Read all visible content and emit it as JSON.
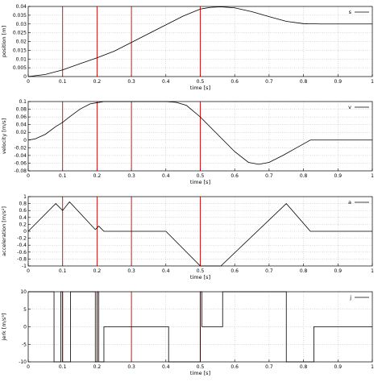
{
  "chart_data": [
    {
      "type": "line",
      "xlabel": "time [s]",
      "ylabel": "position [m]",
      "xlim": [
        0,
        1
      ],
      "ylim": [
        0,
        0.04
      ],
      "xticks": [
        "0",
        "0.1",
        "0.2",
        "0.3",
        "0.4",
        "0.5",
        "0.6",
        "0.7",
        "0.8",
        "0.9",
        "1"
      ],
      "yticks": [
        "0",
        "0.005",
        "0.01",
        "0.015",
        "0.02",
        "0.025",
        "0.03",
        "0.035",
        "0.04"
      ],
      "vlines": [
        0.1,
        0.2,
        0.3,
        0.5
      ],
      "legend_position": "top-right",
      "series": [
        {
          "name": "s",
          "x": [
            0,
            0.05,
            0.1,
            0.15,
            0.2,
            0.25,
            0.3,
            0.35,
            0.4,
            0.45,
            0.5,
            0.53,
            0.56,
            0.6,
            0.65,
            0.7,
            0.75,
            0.8,
            0.85,
            0.9,
            0.95,
            1
          ],
          "y": [
            0,
            0.0012,
            0.0038,
            0.0073,
            0.0107,
            0.0145,
            0.0195,
            0.0245,
            0.0295,
            0.0345,
            0.0385,
            0.0395,
            0.0398,
            0.0392,
            0.037,
            0.0342,
            0.0315,
            0.0302,
            0.03,
            0.03,
            0.03,
            0.03
          ]
        }
      ]
    },
    {
      "type": "line",
      "xlabel": "time [s]",
      "ylabel": "velocity [m/s]",
      "xlim": [
        0,
        1
      ],
      "ylim": [
        -0.08,
        0.1
      ],
      "xticks": [
        "0",
        "0.1",
        "0.2",
        "0.3",
        "0.4",
        "0.5",
        "0.6",
        "0.7",
        "0.8",
        "0.9",
        "1"
      ],
      "yticks": [
        "-0.08",
        "-0.06",
        "-0.04",
        "-0.02",
        "0",
        "0.02",
        "0.04",
        "0.06",
        "0.08",
        "0.1"
      ],
      "vlines": [
        0.1,
        0.2,
        0.3,
        0.5
      ],
      "legend_position": "top-right",
      "series": [
        {
          "name": "v",
          "x": [
            0,
            0.02,
            0.05,
            0.08,
            0.1,
            0.12,
            0.15,
            0.18,
            0.2,
            0.22,
            0.25,
            0.3,
            0.35,
            0.4,
            0.43,
            0.46,
            0.5,
            0.55,
            0.6,
            0.64,
            0.67,
            0.7,
            0.74,
            0.78,
            0.82,
            0.85,
            0.9,
            0.95,
            1
          ],
          "y": [
            0,
            0.003,
            0.015,
            0.035,
            0.046,
            0.06,
            0.08,
            0.094,
            0.097,
            0.1,
            0.1,
            0.1,
            0.1,
            0.1,
            0.098,
            0.09,
            0.06,
            0.015,
            -0.03,
            -0.058,
            -0.063,
            -0.058,
            -0.04,
            -0.02,
            0,
            0,
            0,
            0,
            0
          ]
        }
      ]
    },
    {
      "type": "line",
      "xlabel": "time [s]",
      "ylabel": "acceleration [m/s²]",
      "xlim": [
        0,
        1
      ],
      "ylim": [
        -1,
        1
      ],
      "xticks": [
        "0",
        "0.1",
        "0.2",
        "0.3",
        "0.4",
        "0.5",
        "0.6",
        "0.7",
        "0.8",
        "0.9",
        "1"
      ],
      "yticks": [
        "-1",
        "-0.8",
        "-0.6",
        "-0.4",
        "-0.2",
        "0",
        "0.2",
        "0.4",
        "0.6",
        "0.8",
        "1"
      ],
      "vlines": [
        0.1,
        0.2,
        0.3,
        0.5
      ],
      "legend_position": "top-right",
      "series": [
        {
          "name": "a",
          "x": [
            0,
            0.08,
            0.1,
            0.12,
            0.195,
            0.205,
            0.22,
            0.4,
            0.5,
            0.56,
            0.75,
            0.82,
            1
          ],
          "y": [
            0,
            0.8,
            0.6,
            0.85,
            0.05,
            0.15,
            0,
            0,
            -1,
            -1,
            0.8,
            0,
            0
          ]
        }
      ]
    },
    {
      "type": "line",
      "xlabel": "time [s]",
      "ylabel": "jerk [m/s³]",
      "xlim": [
        0,
        1
      ],
      "ylim": [
        -10,
        10
      ],
      "xticks": [
        "0",
        "0.1",
        "0.2",
        "0.3",
        "0.4",
        "0.5",
        "0.6",
        "0.7",
        "0.8",
        "0.9",
        "1"
      ],
      "yticks": [
        "-10",
        "-5",
        "0",
        "5",
        "10"
      ],
      "vlines": [
        0.1,
        0.2,
        0.3,
        0.5
      ],
      "legend_position": "top-right",
      "series": [
        {
          "name": "j",
          "x": [
            0,
            0.075,
            0.075,
            0.095,
            0.095,
            0.1,
            0.1,
            0.123,
            0.123,
            0.195,
            0.195,
            0.2,
            0.2,
            0.205,
            0.205,
            0.22,
            0.22,
            0.408,
            0.408,
            0.5,
            0.5,
            0.505,
            0.505,
            0.565,
            0.565,
            0.75,
            0.75,
            0.83,
            0.83,
            1
          ],
          "y": [
            10,
            10,
            -10,
            -10,
            10,
            10,
            -10,
            -10,
            10,
            10,
            -10,
            -10,
            10,
            10,
            -10,
            -10,
            0,
            0,
            -10,
            -10,
            10,
            10,
            0,
            0,
            10,
            10,
            -10,
            -10,
            0,
            0
          ]
        }
      ]
    }
  ],
  "colors": {
    "series_line": "#000000",
    "marker_line": "#cc0000",
    "grid": "#b8b8b8"
  }
}
